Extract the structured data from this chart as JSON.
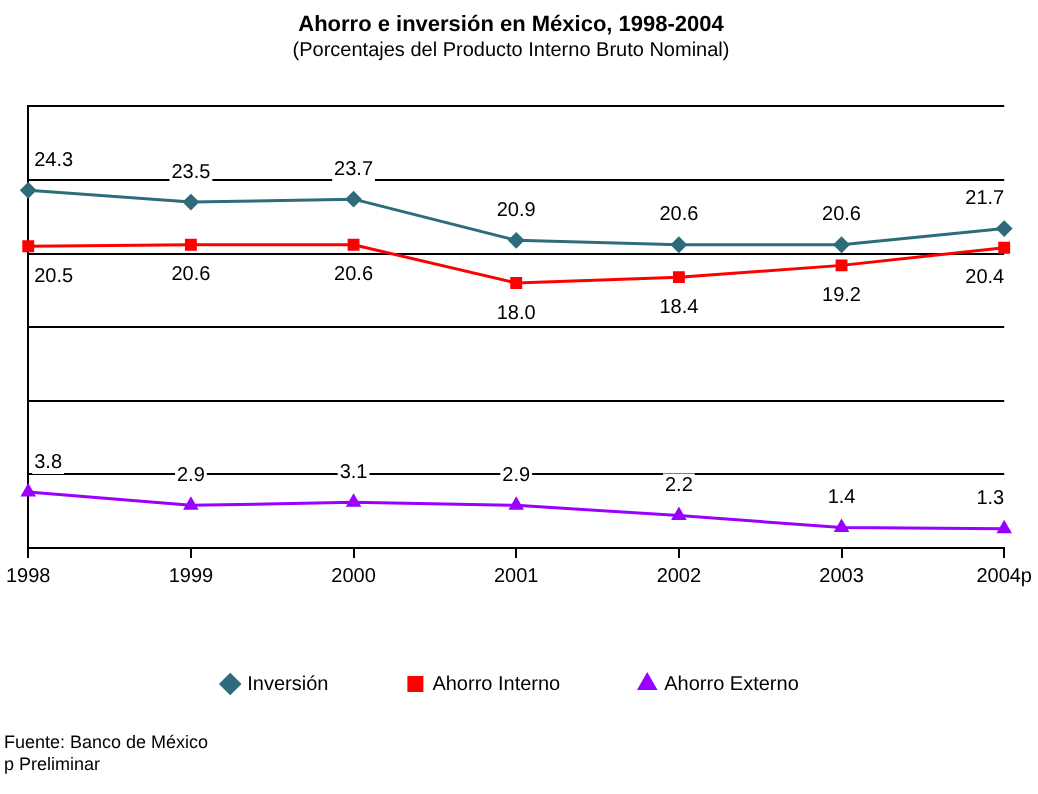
{
  "chart_data": {
    "type": "line",
    "title": "Ahorro e inversión en México, 1998-2004",
    "subtitle": "(Porcentajes del Producto Interno Bruto Nominal)",
    "categories": [
      "1998",
      "1999",
      "2000",
      "2001",
      "2002",
      "2003",
      "2004p"
    ],
    "series": [
      {
        "name": "Inversión",
        "color": "#2e6b7b",
        "marker": "diamond",
        "values": [
          24.3,
          23.5,
          23.7,
          20.9,
          20.6,
          20.6,
          21.7
        ],
        "value_labels": [
          "24.3",
          "23.5",
          "23.7",
          "20.9",
          "20.6",
          "20.6",
          "21.7"
        ]
      },
      {
        "name": "Ahorro Interno",
        "color": "#ff0000",
        "marker": "square",
        "values": [
          20.5,
          20.6,
          20.6,
          18.0,
          18.4,
          19.2,
          20.4
        ],
        "value_labels": [
          "20.5",
          "20.6",
          "20.6",
          "18.0",
          "18.4",
          "19.2",
          "20.4"
        ]
      },
      {
        "name": "Ahorro Externo",
        "color": "#9900ff",
        "marker": "triangle",
        "values": [
          3.8,
          2.9,
          3.1,
          2.9,
          2.2,
          1.4,
          1.3
        ],
        "value_labels": [
          "3.8",
          "2.9",
          "3.1",
          "2.9",
          "2.2",
          "1.4",
          "1.3"
        ]
      }
    ],
    "ylim": [
      0,
      30
    ],
    "yticks": [
      {
        "value": 0,
        "label": null
      },
      {
        "value": 5,
        "label": null
      },
      {
        "value": 10,
        "label": null
      },
      {
        "value": 15,
        "label": null
      },
      {
        "value": 20,
        "label": null
      },
      {
        "value": 25,
        "label": null
      },
      {
        "value": 30,
        "label": null
      }
    ],
    "tick_labels": "x",
    "grid": "y",
    "legend": "bottom",
    "line_style": "solid",
    "annotations": [
      "Fuente: Banco de México",
      "p Preliminar"
    ]
  }
}
